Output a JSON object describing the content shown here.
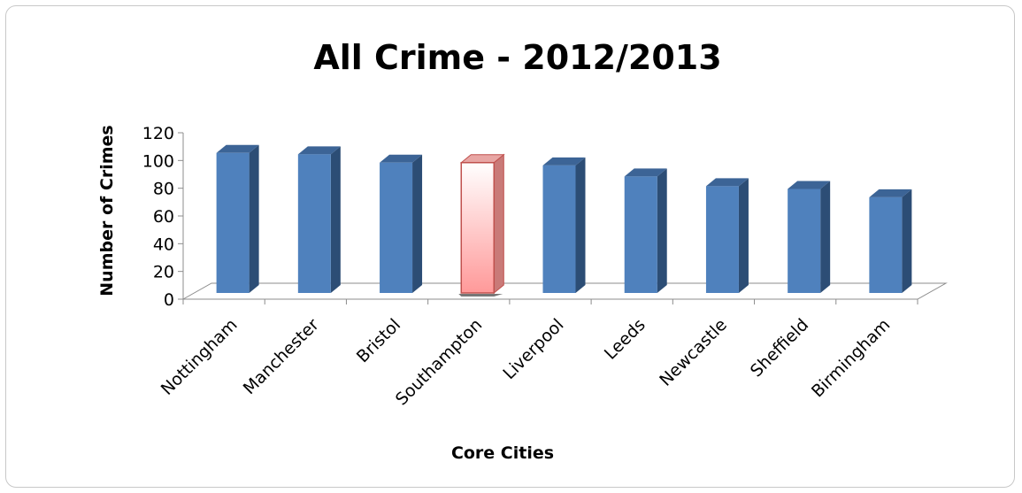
{
  "chart_data": {
    "type": "bar",
    "title": "All Crime - 2012/2013",
    "xlabel": "Core Cities",
    "ylabel": "Number of Crimes",
    "categories": [
      "Nottingham",
      "Manchester",
      "Bristol",
      "Southampton",
      "Liverpool",
      "Leeds",
      "Newcastle",
      "Sheffield",
      "Birmingham"
    ],
    "values": [
      101,
      100,
      94,
      94,
      92,
      84,
      77,
      75,
      69
    ],
    "highlight_category": "Southampton",
    "yticks": [
      "0",
      "20",
      "40",
      "60",
      "80",
      "100",
      "120"
    ],
    "ylim": [
      0,
      120
    ],
    "grid": false,
    "legend": "none",
    "bar_style": "3d-column",
    "colors": {
      "bar_face": "#4f81bd",
      "bar_side": "#2c4d75",
      "bar_top": "#3c6496",
      "highlight_face_top": "#ffffff",
      "highlight_face_bottom": "#ff9999",
      "highlight_border": "#c0504d"
    }
  }
}
